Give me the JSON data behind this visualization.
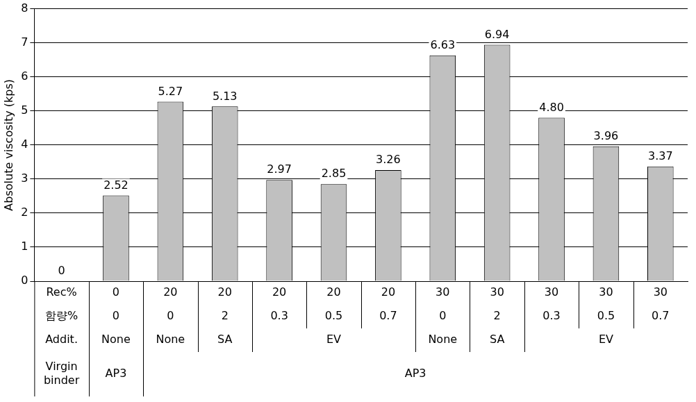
{
  "chart_data": {
    "type": "bar",
    "ylabel": "Absolute viscosity (kps)",
    "categories": [
      "Rec%",
      "0",
      "20",
      "20",
      "20",
      "20",
      "20",
      "30",
      "30",
      "30",
      "30",
      "30"
    ],
    "values": [
      0,
      2.52,
      5.27,
      5.13,
      2.97,
      2.85,
      3.26,
      6.63,
      6.94,
      4.8,
      3.96,
      3.37
    ],
    "value_labels": [
      "0",
      "2.52",
      "5.27",
      "5.13",
      "2.97",
      "2.85",
      "3.26",
      "6.63",
      "6.94",
      "4.80",
      "3.96",
      "3.37"
    ],
    "color": "#c0c0c0",
    "ylim": [
      0,
      8
    ],
    "yticks": [
      0,
      1,
      2,
      3,
      4,
      5,
      6,
      7,
      8
    ],
    "grid": "y",
    "legend": false,
    "annotations": [
      "함량%",
      "0",
      "0",
      "2",
      "0.3",
      "0.5",
      "0.7",
      "0",
      "2",
      "0.3",
      "0.5",
      "0.7",
      "Addit.",
      "None",
      "None",
      "SA",
      "EV",
      "None",
      "SA",
      "EV",
      "Virgin binder",
      "AP3",
      "AP3"
    ]
  }
}
